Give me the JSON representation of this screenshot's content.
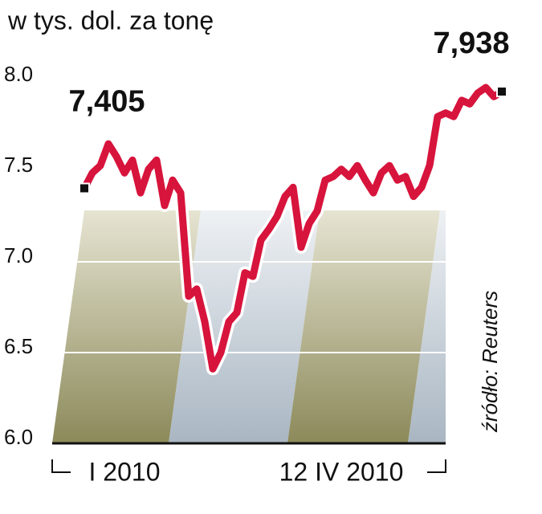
{
  "chart_data": {
    "type": "line",
    "title": "w tys. dol. za tonę",
    "source": "źródło: Reuters",
    "annotations": [
      "7,405",
      "7,938"
    ],
    "categories": [
      null,
      null,
      null,
      null,
      null,
      "I 2010",
      null,
      null,
      null,
      null,
      null,
      null,
      null,
      null,
      null,
      null,
      null,
      null,
      null,
      null,
      null,
      null,
      null,
      null,
      null,
      null,
      null,
      null,
      null,
      null,
      null,
      null,
      "12 IV 2010",
      null,
      null,
      null,
      null,
      null,
      null,
      null,
      null,
      null,
      null,
      null,
      null,
      null,
      null,
      null,
      null,
      null,
      null,
      null,
      null
    ],
    "series": [
      {
        "name": null,
        "color": "#d7143c",
        "values": [
          7.405,
          7.49,
          7.53,
          7.65,
          7.58,
          7.49,
          7.56,
          7.38,
          7.51,
          7.56,
          7.31,
          7.45,
          7.38,
          6.81,
          6.85,
          6.67,
          6.41,
          6.5,
          6.67,
          6.72,
          6.94,
          6.92,
          7.12,
          7.18,
          7.25,
          7.36,
          7.41,
          7.08,
          7.21,
          7.28,
          7.45,
          7.47,
          7.51,
          7.47,
          7.53,
          7.45,
          7.38,
          7.49,
          7.53,
          7.45,
          7.47,
          7.36,
          7.41,
          7.53,
          7.8,
          7.82,
          7.8,
          7.89,
          7.87,
          7.93,
          7.96,
          7.91,
          7.938
        ]
      }
    ],
    "ylim": [
      6.0,
      8.0
    ],
    "yticks": [
      {
        "value": 6.0,
        "label": "6.0"
      },
      {
        "value": 6.5,
        "label": "6.5"
      },
      {
        "value": 7.0,
        "label": "7.0"
      },
      {
        "value": 7.5,
        "label": "7.5"
      },
      {
        "value": 8.0,
        "label": "8.0"
      }
    ],
    "grid": true
  }
}
